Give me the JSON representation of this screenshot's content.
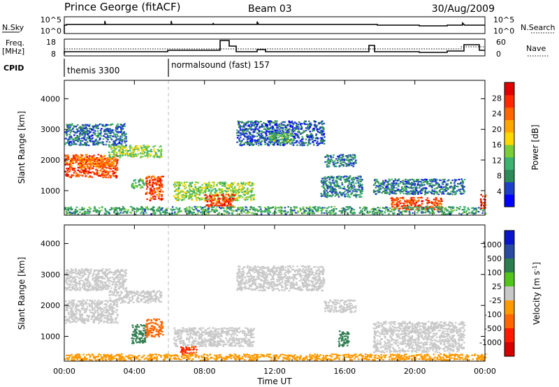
{
  "header": {
    "station": "Prince George (fitACF)",
    "beam": "Beam 03",
    "date": "30/Aug/2009"
  },
  "status_panels": {
    "nsky_label": "N.Sky",
    "nsky_ticks": [
      "10^5",
      "10^0"
    ],
    "nsearch_label": "N.Search",
    "nsearch_ticks": [
      "10^5",
      "10^0"
    ],
    "freq_label": "Freq.",
    "freq_unit": "[MHz]",
    "freq_ticks": [
      "18",
      "8"
    ],
    "nave_label": "Nave",
    "nave_ticks": [
      "60",
      "0"
    ],
    "cpid_label": "CPID",
    "cpid_segments": [
      {
        "start_hour": 0,
        "end_hour": 6,
        "label": "themis 3300"
      },
      {
        "start_hour": 6,
        "end_hour": 24,
        "label": "normalsound (fast) 157"
      }
    ]
  },
  "colors": {
    "power_scale": [
      "#0000ff",
      "#1e3fc8",
      "#2e8b57",
      "#3cb371",
      "#7ccd3a",
      "#ffd700",
      "#ffa500",
      "#ff6600",
      "#ff2a00",
      "#e00000"
    ],
    "velocity_scale": [
      "#0a14c8",
      "#2a4aa0",
      "#2e7d4f",
      "#52c41a",
      "#c8c8c8",
      "#c8c8c8",
      "#ff9900",
      "#ff6600",
      "#ff1a00",
      "#d40000"
    ],
    "cpid_boundary": "#bbbbbb"
  },
  "chart_data": [
    {
      "type": "heatmap",
      "panel": "power",
      "xlabel": "",
      "ylabel": "Slant Range [km]",
      "xlim": [
        0,
        24
      ],
      "ylim": [
        200,
        4600
      ],
      "yticks": [
        1000,
        2000,
        3000,
        4000
      ],
      "colorbar": {
        "label": "Power [dB]",
        "range": [
          0,
          32
        ],
        "ticks": [
          4,
          8,
          12,
          16,
          20,
          24,
          28
        ]
      },
      "echo_regions": [
        {
          "t": [
            0.0,
            3.0
          ],
          "r": [
            1450,
            2200
          ],
          "value": 26
        },
        {
          "t": [
            0.8,
            2.8
          ],
          "r": [
            1800,
            2100
          ],
          "value": 22
        },
        {
          "t": [
            2.5,
            5.5
          ],
          "r": [
            2100,
            2500
          ],
          "value": 14
        },
        {
          "t": [
            0.0,
            3.5
          ],
          "r": [
            2500,
            3200
          ],
          "value": 7
        },
        {
          "t": [
            4.6,
            5.6
          ],
          "r": [
            700,
            1500
          ],
          "value": 26
        },
        {
          "t": [
            3.8,
            4.6
          ],
          "r": [
            1100,
            1400
          ],
          "value": 12
        },
        {
          "t": [
            6.2,
            10.8
          ],
          "r": [
            700,
            1300
          ],
          "value": 14
        },
        {
          "t": [
            8.0,
            9.7
          ],
          "r": [
            480,
            900
          ],
          "value": 27
        },
        {
          "t": [
            9.8,
            14.8
          ],
          "r": [
            2500,
            3300
          ],
          "value": 6
        },
        {
          "t": [
            11.6,
            13.0
          ],
          "r": [
            2600,
            2900
          ],
          "value": 12
        },
        {
          "t": [
            14.8,
            16.6
          ],
          "r": [
            1800,
            2200
          ],
          "value": 8
        },
        {
          "t": [
            14.6,
            17.0
          ],
          "r": [
            800,
            1500
          ],
          "value": 8
        },
        {
          "t": [
            17.6,
            22.8
          ],
          "r": [
            900,
            1400
          ],
          "value": 7
        },
        {
          "t": [
            18.6,
            21.5
          ],
          "r": [
            400,
            800
          ],
          "value": 26
        },
        {
          "t": [
            0.0,
            24.0
          ],
          "r": [
            250,
            500
          ],
          "value": 10
        },
        {
          "t": [
            23.7,
            24.0
          ],
          "r": [
            400,
            900
          ],
          "value": 28
        }
      ]
    },
    {
      "type": "heatmap",
      "panel": "velocity",
      "xlabel": "Time UT",
      "ylabel": "Slant Range [km]",
      "xlim": [
        0,
        24
      ],
      "ylim": [
        200,
        4600
      ],
      "xticks": [
        "00:00",
        "04:00",
        "08:00",
        "12:00",
        "16:00",
        "20:00",
        "00:00"
      ],
      "yticks": [
        1000,
        2000,
        3000,
        4000
      ],
      "colorbar": {
        "label": "Velocity [m s^-1]",
        "ticks": [
          1000,
          500,
          100,
          25,
          -25,
          -100,
          -500,
          -1000
        ]
      },
      "echo_regions": [
        {
          "t": [
            0.0,
            3.0
          ],
          "r": [
            1450,
            2200
          ],
          "value": 0
        },
        {
          "t": [
            2.5,
            5.5
          ],
          "r": [
            2100,
            2500
          ],
          "value": 0
        },
        {
          "t": [
            0.0,
            3.5
          ],
          "r": [
            2500,
            3200
          ],
          "value": 0
        },
        {
          "t": [
            4.6,
            5.6
          ],
          "r": [
            1000,
            1600
          ],
          "value": -300
        },
        {
          "t": [
            3.8,
            4.6
          ],
          "r": [
            800,
            1400
          ],
          "value": 150
        },
        {
          "t": [
            6.2,
            10.8
          ],
          "r": [
            700,
            1300
          ],
          "value": 0
        },
        {
          "t": [
            6.6,
            7.6
          ],
          "r": [
            400,
            700
          ],
          "value": -500
        },
        {
          "t": [
            9.8,
            14.8
          ],
          "r": [
            2500,
            3300
          ],
          "value": 0
        },
        {
          "t": [
            14.8,
            16.6
          ],
          "r": [
            1800,
            2200
          ],
          "value": 0
        },
        {
          "t": [
            15.6,
            16.2
          ],
          "r": [
            700,
            1200
          ],
          "value": 200
        },
        {
          "t": [
            17.6,
            22.8
          ],
          "r": [
            500,
            1500
          ],
          "value": 0
        },
        {
          "t": [
            0.0,
            24.0
          ],
          "r": [
            250,
            450
          ],
          "value": -60
        }
      ]
    }
  ]
}
